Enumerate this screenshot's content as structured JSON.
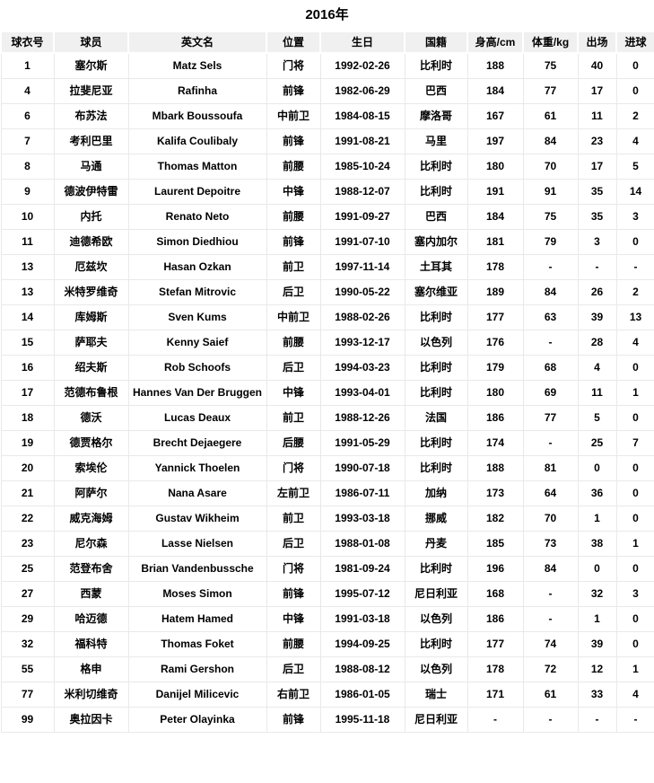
{
  "title": "2016年",
  "table": {
    "columns": [
      "球衣号",
      "球员",
      "英文名",
      "位置",
      "生日",
      "国籍",
      "身高/cm",
      "体重/kg",
      "出场",
      "进球"
    ],
    "rows": [
      [
        "1",
        "塞尔斯",
        "Matz Sels",
        "门将",
        "1992-02-26",
        "比利时",
        "188",
        "75",
        "40",
        "0"
      ],
      [
        "4",
        "拉斐尼亚",
        "Rafinha",
        "前锋",
        "1982-06-29",
        "巴西",
        "184",
        "77",
        "17",
        "0"
      ],
      [
        "6",
        "布苏法",
        "Mbark Boussoufa",
        "中前卫",
        "1984-08-15",
        "摩洛哥",
        "167",
        "61",
        "11",
        "2"
      ],
      [
        "7",
        "考利巴里",
        "Kalifa Coulibaly",
        "前锋",
        "1991-08-21",
        "马里",
        "197",
        "84",
        "23",
        "4"
      ],
      [
        "8",
        "马通",
        "Thomas Matton",
        "前腰",
        "1985-10-24",
        "比利时",
        "180",
        "70",
        "17",
        "5"
      ],
      [
        "9",
        "德波伊特雷",
        "Laurent Depoitre",
        "中锋",
        "1988-12-07",
        "比利时",
        "191",
        "91",
        "35",
        "14"
      ],
      [
        "10",
        "内托",
        "Renato Neto",
        "前腰",
        "1991-09-27",
        "巴西",
        "184",
        "75",
        "35",
        "3"
      ],
      [
        "11",
        "迪德希欧",
        "Simon Diedhiou",
        "前锋",
        "1991-07-10",
        "塞内加尔",
        "181",
        "79",
        "3",
        "0"
      ],
      [
        "13",
        "厄兹坎",
        "Hasan Ozkan",
        "前卫",
        "1997-11-14",
        "土耳其",
        "178",
        "-",
        "-",
        "-"
      ],
      [
        "13",
        "米特罗维奇",
        "Stefan Mitrovic",
        "后卫",
        "1990-05-22",
        "塞尔维亚",
        "189",
        "84",
        "26",
        "2"
      ],
      [
        "14",
        "库姆斯",
        "Sven Kums",
        "中前卫",
        "1988-02-26",
        "比利时",
        "177",
        "63",
        "39",
        "13"
      ],
      [
        "15",
        "萨耶夫",
        "Kenny Saief",
        "前腰",
        "1993-12-17",
        "以色列",
        "176",
        "-",
        "28",
        "4"
      ],
      [
        "16",
        "绍夫斯",
        "Rob Schoofs",
        "后卫",
        "1994-03-23",
        "比利时",
        "179",
        "68",
        "4",
        "0"
      ],
      [
        "17",
        "范德布鲁根",
        "Hannes Van Der Bruggen",
        "中锋",
        "1993-04-01",
        "比利时",
        "180",
        "69",
        "11",
        "1"
      ],
      [
        "18",
        "德沃",
        "Lucas Deaux",
        "前卫",
        "1988-12-26",
        "法国",
        "186",
        "77",
        "5",
        "0"
      ],
      [
        "19",
        "德贾格尔",
        "Brecht Dejaegere",
        "后腰",
        "1991-05-29",
        "比利时",
        "174",
        "-",
        "25",
        "7"
      ],
      [
        "20",
        "索埃伦",
        "Yannick Thoelen",
        "门将",
        "1990-07-18",
        "比利时",
        "188",
        "81",
        "0",
        "0"
      ],
      [
        "21",
        "阿萨尔",
        "Nana Asare",
        "左前卫",
        "1986-07-11",
        "加纳",
        "173",
        "64",
        "36",
        "0"
      ],
      [
        "22",
        "威克海姆",
        "Gustav Wikheim",
        "前卫",
        "1993-03-18",
        "挪威",
        "182",
        "70",
        "1",
        "0"
      ],
      [
        "23",
        "尼尔森",
        "Lasse Nielsen",
        "后卫",
        "1988-01-08",
        "丹麦",
        "185",
        "73",
        "38",
        "1"
      ],
      [
        "25",
        "范登布舍",
        "Brian Vandenbussche",
        "门将",
        "1981-09-24",
        "比利时",
        "196",
        "84",
        "0",
        "0"
      ],
      [
        "27",
        "西蒙",
        "Moses Simon",
        "前锋",
        "1995-07-12",
        "尼日利亚",
        "168",
        "-",
        "32",
        "3"
      ],
      [
        "29",
        "哈迈德",
        "Hatem Hamed",
        "中锋",
        "1991-03-18",
        "以色列",
        "186",
        "-",
        "1",
        "0"
      ],
      [
        "32",
        "福科特",
        "Thomas Foket",
        "前腰",
        "1994-09-25",
        "比利时",
        "177",
        "74",
        "39",
        "0"
      ],
      [
        "55",
        "格申",
        "Rami Gershon",
        "后卫",
        "1988-08-12",
        "以色列",
        "178",
        "72",
        "12",
        "1"
      ],
      [
        "77",
        "米利切维奇",
        "Danijel Milicevic",
        "右前卫",
        "1986-01-05",
        "瑞士",
        "171",
        "61",
        "33",
        "4"
      ],
      [
        "99",
        "奥拉因卡",
        "Peter Olayinka",
        "前锋",
        "1995-11-18",
        "尼日利亚",
        "-",
        "-",
        "-",
        "-"
      ]
    ]
  },
  "colors": {
    "header_bg": "#f0f0f0",
    "border": "#e9e9e9",
    "text": "#000000",
    "page_bg": "#ffffff"
  }
}
